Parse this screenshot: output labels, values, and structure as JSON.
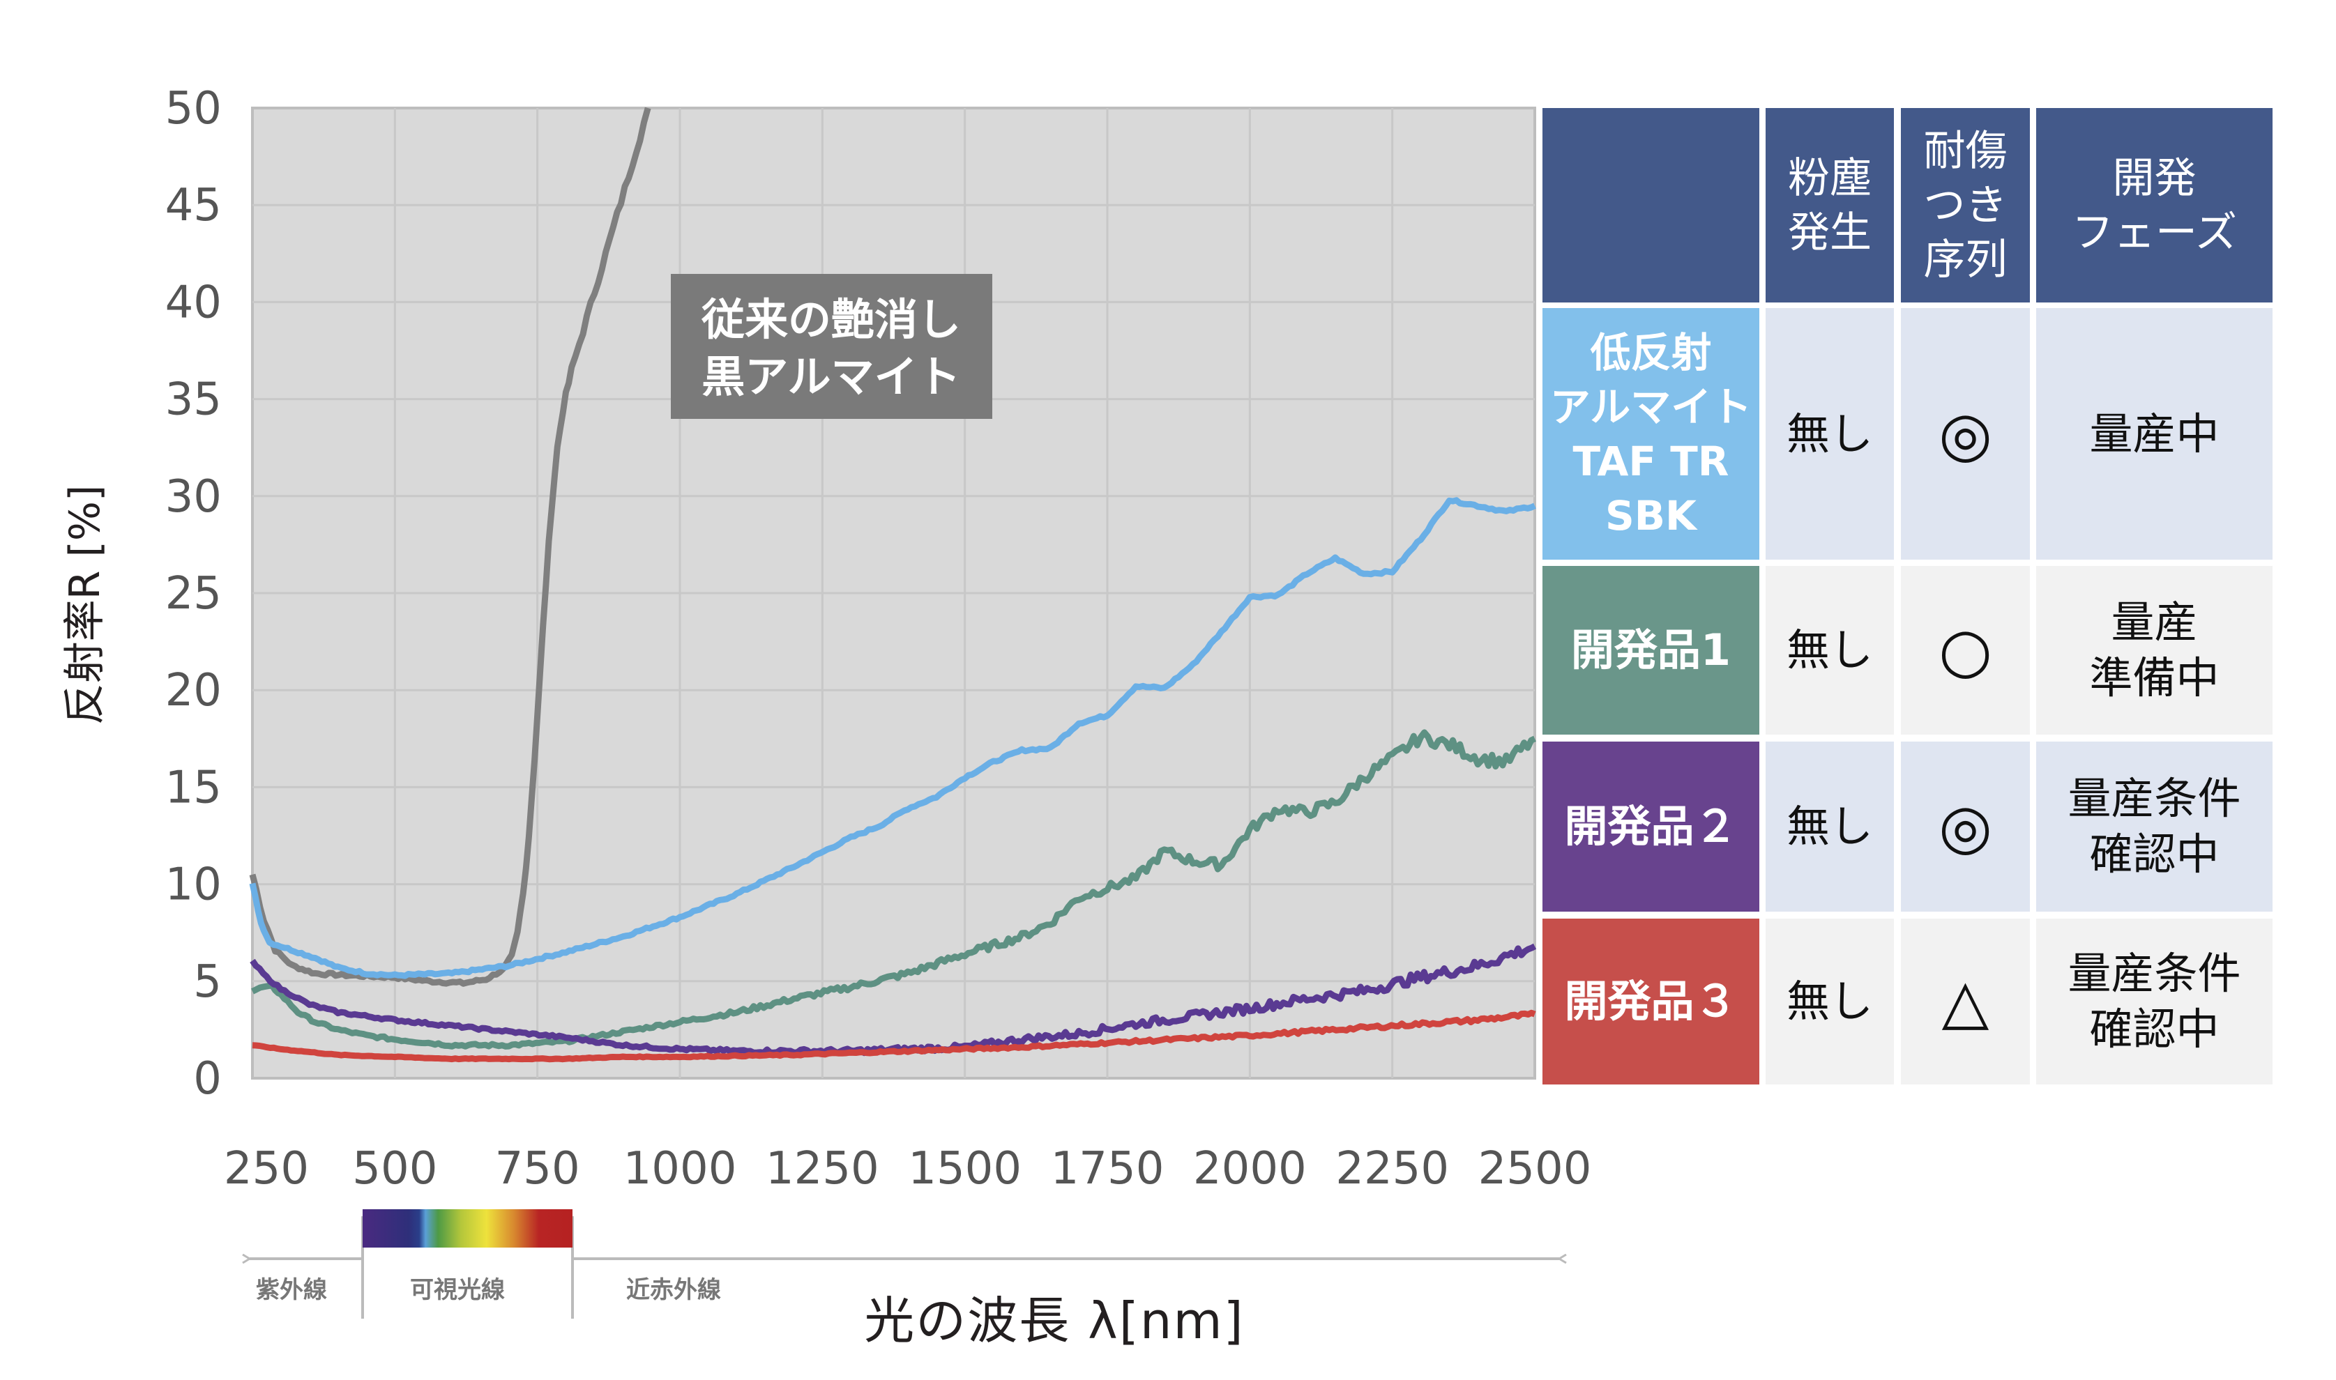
{
  "chart_data": {
    "type": "line",
    "xlabel": "光の波長 λ[nm]",
    "ylabel": "反射率R [%]",
    "xlim": [
      250,
      2500
    ],
    "ylim": [
      0,
      50
    ],
    "xticks": [
      250,
      500,
      750,
      1000,
      1250,
      1500,
      1750,
      2000,
      2250,
      2500
    ],
    "yticks": [
      0,
      5,
      10,
      15,
      20,
      25,
      30,
      35,
      40,
      45,
      50
    ],
    "grid": true,
    "annotation": {
      "line1": "従来の艶消し",
      "line2": "黒アルマイト",
      "color": "#7a7a7a"
    },
    "series": [
      {
        "name": "従来の艶消し黒アルマイト",
        "color": "#7f7f7f",
        "x": [
          250,
          270,
          290,
          320,
          360,
          420,
          500,
          560,
          620,
          660,
          690,
          705,
          715,
          725,
          735,
          745,
          755,
          765,
          775,
          785,
          795,
          810,
          830,
          850,
          870,
          890,
          910,
          930,
          944
        ],
        "y": [
          10.5,
          8.2,
          6.6,
          5.8,
          5.4,
          5.3,
          5.2,
          5.0,
          4.9,
          5.1,
          5.6,
          6.3,
          7.5,
          9.5,
          12.5,
          16.5,
          21,
          25.5,
          29.5,
          32.5,
          34.5,
          36.5,
          38.5,
          40.5,
          42.5,
          44.5,
          46.5,
          48.5,
          50
        ]
      },
      {
        "name": "低反射アルマイト TAF TR SBK",
        "color": "#6aafe6",
        "x": [
          250,
          265,
          280,
          300,
          330,
          360,
          400,
          450,
          500,
          600,
          700,
          800,
          900,
          1000,
          1100,
          1200,
          1300,
          1350,
          1400,
          1450,
          1500,
          1550,
          1600,
          1650,
          1700,
          1750,
          1800,
          1850,
          1900,
          1950,
          2000,
          2050,
          2100,
          2150,
          2200,
          2250,
          2300,
          2350,
          2400,
          2450,
          2500
        ],
        "y": [
          10.0,
          8.0,
          7.0,
          6.8,
          6.5,
          6.2,
          5.7,
          5.4,
          5.3,
          5.4,
          5.8,
          6.5,
          7.3,
          8.3,
          9.5,
          10.9,
          12.4,
          13.0,
          13.9,
          14.5,
          15.5,
          16.3,
          16.9,
          17.0,
          18.3,
          18.7,
          20.2,
          20.1,
          21.3,
          23.0,
          24.8,
          24.9,
          26.0,
          26.8,
          26.0,
          26.1,
          27.8,
          29.8,
          29.5,
          29.2,
          29.5
        ]
      },
      {
        "name": "開発品1",
        "color": "#5e9183",
        "x": [
          250,
          270,
          285,
          300,
          330,
          360,
          400,
          450,
          500,
          600,
          700,
          800,
          900,
          1000,
          1100,
          1200,
          1300,
          1400,
          1500,
          1600,
          1650,
          1700,
          1750,
          1800,
          1850,
          1900,
          1950,
          2000,
          2050,
          2100,
          2150,
          2200,
          2250,
          2300,
          2350,
          2400,
          2450,
          2500
        ],
        "y": [
          4.5,
          4.7,
          4.7,
          4.3,
          3.4,
          2.9,
          2.5,
          2.2,
          2.0,
          1.7,
          1.7,
          1.9,
          2.4,
          2.9,
          3.4,
          4.1,
          4.7,
          5.4,
          6.4,
          7.3,
          8.0,
          9.3,
          9.8,
          10.3,
          11.7,
          11.2,
          11.0,
          12.8,
          13.9,
          13.7,
          14.2,
          15.5,
          16.5,
          17.6,
          17.2,
          16.5,
          16.3,
          17.5
        ]
      },
      {
        "name": "開発品2",
        "color": "#5a3a92",
        "x": [
          250,
          275,
          300,
          350,
          400,
          500,
          600,
          700,
          800,
          900,
          1000,
          1100,
          1200,
          1300,
          1400,
          1500,
          1600,
          1700,
          1800,
          1900,
          2000,
          2100,
          2200,
          2300,
          2400,
          2500
        ],
        "y": [
          6.0,
          5.2,
          4.6,
          3.8,
          3.4,
          3.0,
          2.7,
          2.4,
          2.1,
          1.7,
          1.5,
          1.4,
          1.4,
          1.4,
          1.5,
          1.6,
          2.0,
          2.3,
          2.8,
          3.2,
          3.6,
          4.1,
          4.5,
          5.2,
          5.8,
          6.8
        ]
      },
      {
        "name": "開発品3",
        "color": "#d0443e",
        "x": [
          250,
          300,
          400,
          500,
          600,
          700,
          800,
          900,
          1000,
          1200,
          1400,
          1600,
          1800,
          2000,
          2200,
          2400,
          2500
        ],
        "y": [
          1.7,
          1.5,
          1.2,
          1.1,
          1.0,
          1.0,
          1.0,
          1.1,
          1.1,
          1.2,
          1.4,
          1.6,
          1.9,
          2.2,
          2.6,
          3.0,
          3.3
        ]
      }
    ],
    "spectrum_bands": {
      "uv": "紫外線",
      "visible": "可視光線",
      "nir": "近赤外線"
    }
  },
  "table": {
    "headers": [
      "",
      "粉塵\n発生",
      "耐傷\nつき\n序列",
      "開発\nフェーズ"
    ],
    "header_color": "#43598a",
    "rows": [
      {
        "label": "低反射\nアルマイト\nTAF TR\nSBK",
        "color": "#82c0eb",
        "dust": "無し",
        "scratch": "◎",
        "phase": "量産中"
      },
      {
        "label": "開発品1",
        "color": "#6a968a",
        "dust": "無し",
        "scratch": "○",
        "phase": "量産\n準備中"
      },
      {
        "label": "開発品２",
        "color": "#68438e",
        "dust": "無し",
        "scratch": "◎",
        "phase": "量産条件\n確認中"
      },
      {
        "label": "開発品３",
        "color": "#c64f4b",
        "dust": "無し",
        "scratch": "△",
        "phase": "量産条件\n確認中"
      }
    ]
  }
}
